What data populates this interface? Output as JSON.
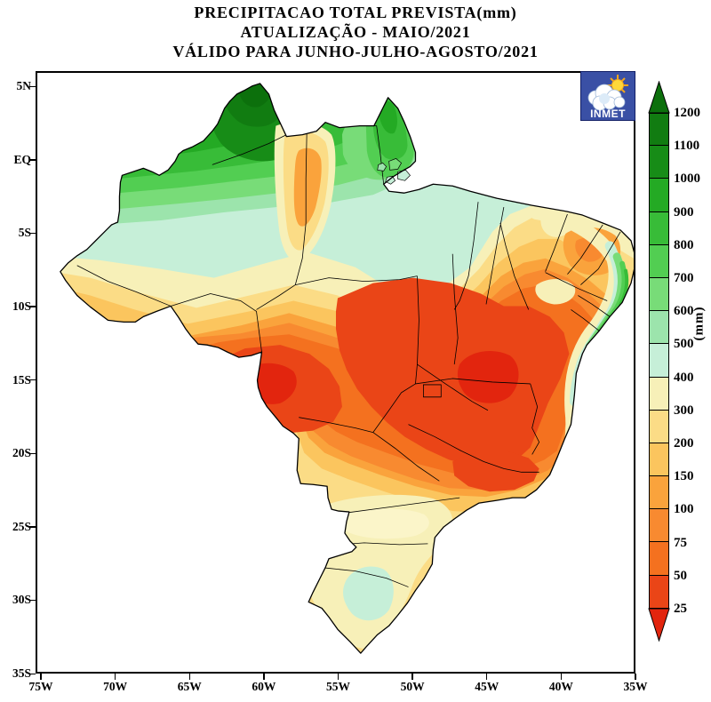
{
  "title": {
    "line1": "PRECIPITACAO TOTAL PREVISTA(mm)",
    "line2": "ATUALIZAÇÃO - MAIO/2021",
    "line3": "VÁLIDO PARA JUNHO-JULHO-AGOSTO/2021"
  },
  "logo": {
    "label": "INMET"
  },
  "map": {
    "lat_labels": [
      "5N",
      "EQ",
      "5S",
      "10S",
      "15S",
      "20S",
      "25S",
      "30S",
      "35S"
    ],
    "lon_labels": [
      "75W",
      "70W",
      "65W",
      "60W",
      "55W",
      "50W",
      "45W",
      "40W",
      "35W"
    ]
  },
  "colorbar": {
    "unit_label": "(mm)",
    "ticks": [
      "1200",
      "1100",
      "1000",
      "900",
      "800",
      "700",
      "600",
      "500",
      "400",
      "300",
      "200",
      "150",
      "100",
      "75",
      "50",
      "25"
    ],
    "segments": [
      "#117c11",
      "#178c17",
      "#24aa24",
      "#38bc38",
      "#52ce52",
      "#78dc78",
      "#9ce4ac",
      "#c6efd8",
      "#f7f0b8",
      "#fbdc86",
      "#fbc55e",
      "#faa33c",
      "#f88a30",
      "#f4711f",
      "#ea4517"
    ],
    "arrow_top_color": "#0c700c",
    "arrow_bottom_color": "#e2250e"
  },
  "chart_data": {
    "type": "heatmap",
    "title": "PRECIPITACAO TOTAL PREVISTA(mm)",
    "subtitle": "ATUALIZAÇÃO - MAIO/2021 / VÁLIDO PARA JUNHO-JULHO-AGOSTO/2021",
    "unit": "mm",
    "scale_levels_mm": [
      25,
      50,
      75,
      100,
      150,
      200,
      300,
      400,
      500,
      600,
      700,
      800,
      900,
      1000,
      1100,
      1200
    ],
    "x_axis_ticks": [
      "75W",
      "70W",
      "65W",
      "60W",
      "55W",
      "50W",
      "45W",
      "40W",
      "35W"
    ],
    "y_axis_ticks": [
      "5N",
      "EQ",
      "5S",
      "10S",
      "15S",
      "20S",
      "25S",
      "30S",
      "35S"
    ],
    "legend_position": "right",
    "summary": "Forecast precipitation over Brazil: above 1000 mm in the far north (Roraima, Amapá), 400-900 mm across Amazonas, 25-100 mm over central Brazil and the interior northeast, a 500-800 mm green strip along the east coast, and 200-400 mm in the south with a 400-500 mm pocket over Rio Grande do Sul."
  }
}
